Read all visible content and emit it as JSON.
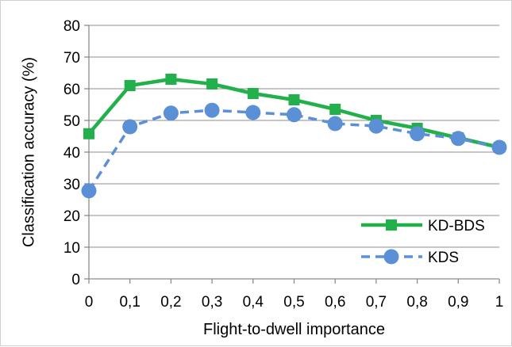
{
  "chart_data": {
    "type": "line",
    "xlabel": "Flight-to-dwell importance",
    "ylabel": "Classification accuracy (%)",
    "x": [
      "0",
      "0,1",
      "0,2",
      "0,3",
      "0,4",
      "0,5",
      "0,6",
      "0,7",
      "0,8",
      "0,9",
      "1"
    ],
    "ylim": [
      0,
      80
    ],
    "yticks": [
      "0",
      "10",
      "20",
      "30",
      "40",
      "50",
      "60",
      "70",
      "80"
    ],
    "grid": "horizontal",
    "legend_position": "bottom-right",
    "series": [
      {
        "name": "KD-BDS",
        "color": "#22b04b",
        "marker": "square",
        "line_style": "solid",
        "values": [
          45.8,
          61.0,
          63.0,
          61.5,
          58.5,
          56.5,
          53.5,
          50.0,
          47.5,
          44.5,
          41.5
        ]
      },
      {
        "name": "KDS",
        "color": "#5b8fd6",
        "marker": "circle",
        "line_style": "dashed",
        "values": [
          27.8,
          48.0,
          52.3,
          53.2,
          52.5,
          51.8,
          49.0,
          48.2,
          45.8,
          44.3,
          41.5
        ]
      }
    ]
  }
}
